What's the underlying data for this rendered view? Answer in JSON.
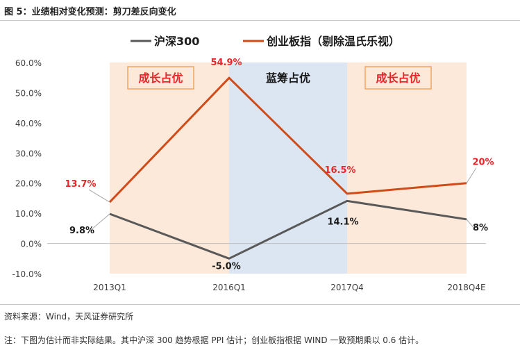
{
  "figure_title": "图 5：业绩相对变化预测：剪刀差反向变化",
  "source": "资料来源：Wind，天风证券研究所",
  "note": "注：下图为估计而非实际结果。其中沪深 300 趋势根据 PPI 估计；创业板指根据 WIND 一致预期乘以 0.6 估计。",
  "colors": {
    "hs300": "#595959",
    "cyb": "#d04b1a",
    "orange_band": "#fde9d9",
    "blue_band": "#dce6f2",
    "box_border": "#f4a460",
    "box_text": "#e8262a",
    "cyb_label": "#e8262a"
  },
  "chart_data": {
    "type": "line",
    "categories": [
      "2013Q1",
      "2016Q1",
      "2017Q4",
      "2018Q4E"
    ],
    "ylim": [
      -10,
      60
    ],
    "yticks": [
      -10,
      0,
      10,
      20,
      30,
      40,
      50,
      60
    ],
    "ytick_labels": [
      "-10.0%",
      "0.0%",
      "10.0%",
      "20.0%",
      "30.0%",
      "40.0%",
      "50.0%",
      "60.0%"
    ],
    "legend_position": "top",
    "series": [
      {
        "name": "沪深300",
        "color": "#595959",
        "values": [
          9.8,
          -5.0,
          14.1,
          8
        ],
        "labels": [
          "9.8%",
          "-5.0%",
          "14.1%",
          "8%"
        ]
      },
      {
        "name": "创业板指（剔除温氏乐视）",
        "color": "#d04b1a",
        "values": [
          13.7,
          54.9,
          16.5,
          20
        ],
        "labels": [
          "13.7%",
          "54.9%",
          "16.5%",
          "20%"
        ]
      }
    ],
    "bands": [
      {
        "label": "成长占优",
        "style": "orange"
      },
      {
        "label": "蓝筹占优",
        "style": "blue"
      },
      {
        "label": "成长占优",
        "style": "orange"
      }
    ]
  }
}
